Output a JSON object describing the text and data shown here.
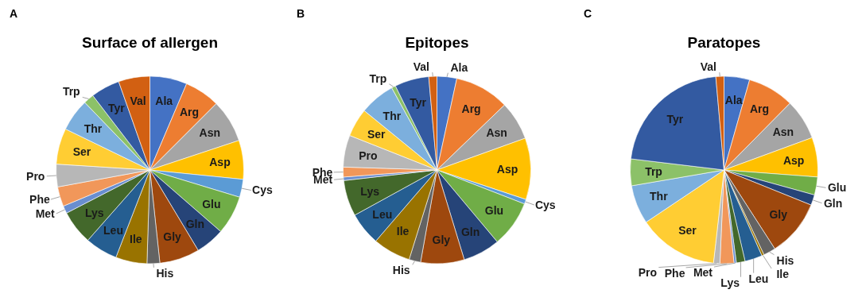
{
  "chart_data": [
    {
      "type": "pie",
      "title": "Surface of allergen",
      "annotations": [
        "A"
      ],
      "categories": [
        "Ala",
        "Arg",
        "Asn",
        "Asp",
        "Cys",
        "Glu",
        "Gln",
        "Gly",
        "His",
        "Ile",
        "Leu",
        "Lys",
        "Met",
        "Phe",
        "Pro",
        "Ser",
        "Thr",
        "Trp",
        "Tyr",
        "Val"
      ],
      "values": [
        6.4,
        6.1,
        7.4,
        6.7,
        3.1,
        6.7,
        5.0,
        6.9,
        2.2,
        5.4,
        5.6,
        5.9,
        1.3,
        3.4,
        3.9,
        6.2,
        5.6,
        1.8,
        5.0,
        5.4
      ],
      "colors": [
        "#4472c4",
        "#ed7d31",
        "#a5a5a5",
        "#ffc000",
        "#5b9bd5",
        "#70ad47",
        "#264478",
        "#9e480e",
        "#636363",
        "#997300",
        "#255e91",
        "#43682b",
        "#698ed0",
        "#f1975a",
        "#b7b7b7",
        "#ffcd33",
        "#7cafdd",
        "#8cc168",
        "#335aa1",
        "#d26012"
      ]
    },
    {
      "type": "pie",
      "title": "Epitopes",
      "annotations": [
        "B"
      ],
      "categories": [
        "Ala",
        "Arg",
        "Asn",
        "Asp",
        "Cys",
        "Glu",
        "Gln",
        "Gly",
        "His",
        "Ile",
        "Leu",
        "Lys",
        "Met",
        "Phe",
        "Pro",
        "Ser",
        "Thr",
        "Trp",
        "Tyr",
        "Val"
      ],
      "values": [
        3.4,
        9.4,
        6.7,
        10.6,
        0.8,
        8.0,
        6.4,
        7.5,
        2.0,
        6.5,
        5.7,
        6.2,
        0.6,
        1.7,
        5.5,
        4.9,
        6.1,
        0.7,
        5.9,
        1.4
      ],
      "colors": [
        "#4472c4",
        "#ed7d31",
        "#a5a5a5",
        "#ffc000",
        "#5b9bd5",
        "#70ad47",
        "#264478",
        "#9e480e",
        "#636363",
        "#997300",
        "#255e91",
        "#43682b",
        "#698ed0",
        "#f1975a",
        "#b7b7b7",
        "#ffcd33",
        "#7cafdd",
        "#8cc168",
        "#335aa1",
        "#d26012"
      ]
    },
    {
      "type": "pie",
      "title": "Paratopes",
      "annotations": [
        "C"
      ],
      "categories": [
        "Ala",
        "Arg",
        "Asn",
        "Asp",
        "Glu",
        "Gln",
        "Gly",
        "His",
        "Ile",
        "Leu",
        "Lys",
        "Met",
        "Phe",
        "Pro",
        "Ser",
        "Thr",
        "Trp",
        "Tyr",
        "Val"
      ],
      "values": [
        4.4,
        8.0,
        7.0,
        6.8,
        3.1,
        1.8,
        9.8,
        2.1,
        0.4,
        3.0,
        1.5,
        0.4,
        2.4,
        1.1,
        13.8,
        6.7,
        4.6,
        21.7,
        1.4
      ],
      "colors": [
        "#4472c4",
        "#ed7d31",
        "#a5a5a5",
        "#ffc000",
        "#70ad47",
        "#264478",
        "#9e480e",
        "#636363",
        "#997300",
        "#255e91",
        "#43682b",
        "#698ed0",
        "#f1975a",
        "#b7b7b7",
        "#ffcd33",
        "#7cafdd",
        "#8cc168",
        "#335aa1",
        "#d26012"
      ]
    }
  ]
}
